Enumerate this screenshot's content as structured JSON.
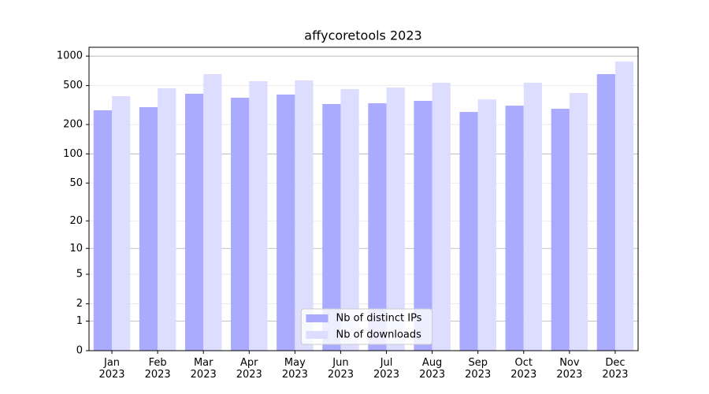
{
  "chart_data": {
    "type": "bar",
    "title": "affycoretools 2023",
    "categories": [
      "Jan\n2023",
      "Feb\n2023",
      "Mar\n2023",
      "Apr\n2023",
      "May\n2023",
      "Jun\n2023",
      "Jul\n2023",
      "Aug\n2023",
      "Sep\n2023",
      "Oct\n2023",
      "Nov\n2023",
      "Dec\n2023"
    ],
    "series": [
      {
        "name": "Nb of distinct IPs",
        "color": "#aaaaff",
        "values": [
          280,
          301,
          413,
          376,
          405,
          324,
          330,
          349,
          269,
          312,
          290,
          655
        ]
      },
      {
        "name": "Nb of downloads",
        "color": "#ddddff",
        "values": [
          390,
          470,
          655,
          555,
          565,
          461,
          478,
          535,
          362,
          535,
          420,
          880
        ]
      }
    ],
    "yscale": "symlog",
    "ylim": [
      0,
      1230
    ],
    "yticks": [
      0,
      1,
      2,
      5,
      10,
      20,
      50,
      100,
      200,
      500,
      1000
    ],
    "grid": true,
    "legend": "lower center"
  }
}
